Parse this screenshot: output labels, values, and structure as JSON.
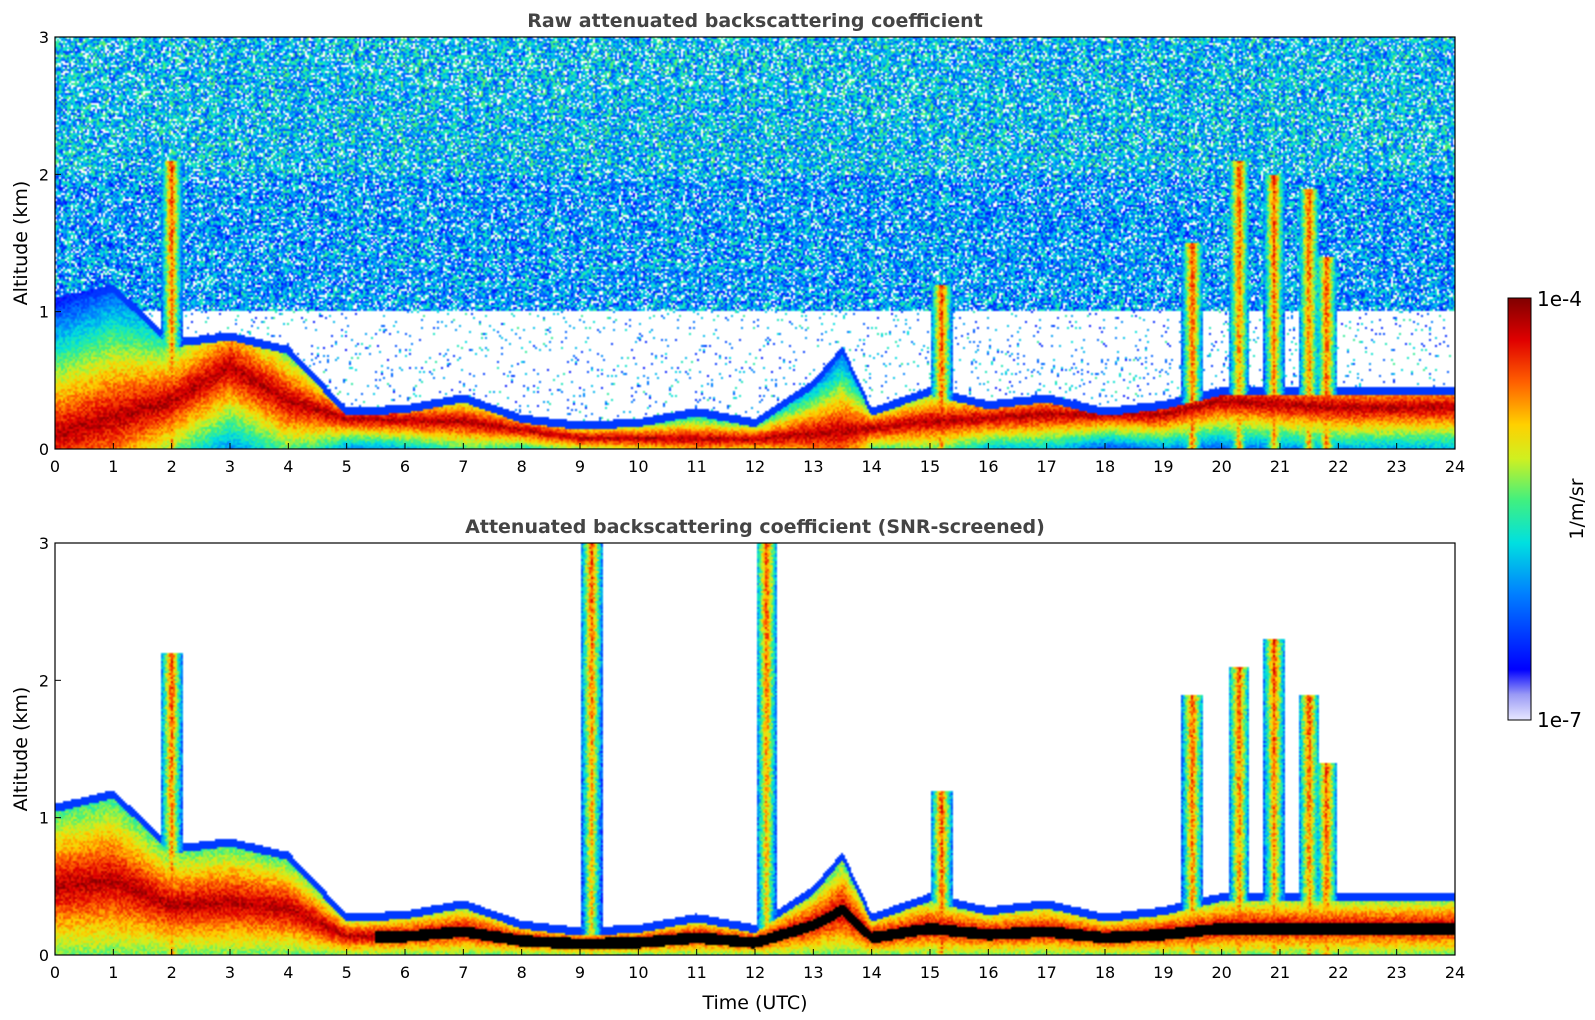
{
  "chart_data": [
    {
      "type": "heatmap",
      "id": "raw",
      "title": "Raw attenuated backscattering coefficient",
      "xlabel": "",
      "ylabel": "Altitude (km)",
      "xlim": [
        0,
        24
      ],
      "ylim": [
        0,
        3
      ],
      "xticks": [
        "0",
        "1",
        "2",
        "3",
        "4",
        "5",
        "6",
        "7",
        "8",
        "9",
        "10",
        "11",
        "12",
        "13",
        "14",
        "15",
        "16",
        "17",
        "18",
        "19",
        "20",
        "21",
        "22",
        "23",
        "24"
      ],
      "yticks": [
        "0",
        "1",
        "2",
        "3"
      ],
      "features": {
        "aerosol_layer_top_km": [
          [
            0,
            1.1
          ],
          [
            1,
            1.2
          ],
          [
            2,
            0.8
          ],
          [
            3,
            0.85
          ],
          [
            4,
            0.75
          ],
          [
            5,
            0.3
          ],
          [
            6,
            0.32
          ],
          [
            7,
            0.4
          ],
          [
            8,
            0.25
          ],
          [
            9,
            0.2
          ],
          [
            10,
            0.22
          ],
          [
            11,
            0.3
          ],
          [
            12,
            0.22
          ],
          [
            13,
            0.5
          ],
          [
            13.5,
            0.75
          ],
          [
            14,
            0.3
          ],
          [
            15,
            0.45
          ],
          [
            16,
            0.35
          ],
          [
            17,
            0.4
          ],
          [
            18,
            0.3
          ],
          [
            19,
            0.35
          ],
          [
            20,
            0.45
          ],
          [
            21,
            0.45
          ],
          [
            22,
            0.45
          ],
          [
            23,
            0.45
          ],
          [
            24,
            0.45
          ]
        ],
        "peak_layer_km": [
          [
            0,
            0.1
          ],
          [
            2,
            0.35
          ],
          [
            3,
            0.6
          ],
          [
            4,
            0.35
          ],
          [
            5,
            0.22
          ],
          [
            7,
            0.2
          ],
          [
            9,
            0.08
          ],
          [
            12,
            0.07
          ],
          [
            14,
            0.15
          ],
          [
            15,
            0.2
          ],
          [
            17,
            0.25
          ],
          [
            19,
            0.25
          ],
          [
            20,
            0.35
          ],
          [
            22,
            0.3
          ],
          [
            24,
            0.3
          ]
        ],
        "clouds": [
          {
            "t": 2.0,
            "top_km": 2.1
          },
          {
            "t": 15.2,
            "top_km": 1.2
          },
          {
            "t": 19.5,
            "top_km": 1.5
          },
          {
            "t": 20.3,
            "top_km": 2.1
          },
          {
            "t": 20.9,
            "top_km": 2.0
          },
          {
            "t": 21.5,
            "top_km": 1.9
          },
          {
            "t": 21.8,
            "top_km": 1.4
          }
        ],
        "noise_floor": "high"
      }
    },
    {
      "type": "heatmap",
      "id": "screened",
      "title": "Attenuated backscattering coefficient (SNR-screened)",
      "xlabel": "Time (UTC)",
      "ylabel": "Altitude (km)",
      "xlim": [
        0,
        24
      ],
      "ylim": [
        0,
        3
      ],
      "xticks": [
        "0",
        "1",
        "2",
        "3",
        "4",
        "5",
        "6",
        "7",
        "8",
        "9",
        "10",
        "11",
        "12",
        "13",
        "14",
        "15",
        "16",
        "17",
        "18",
        "19",
        "20",
        "21",
        "22",
        "23",
        "24"
      ],
      "yticks": [
        "0",
        "1",
        "2",
        "3"
      ],
      "features": {
        "aerosol_layer_top_km": [
          [
            0,
            1.1
          ],
          [
            1,
            1.2
          ],
          [
            2,
            0.8
          ],
          [
            3,
            0.85
          ],
          [
            4,
            0.75
          ],
          [
            5,
            0.3
          ],
          [
            6,
            0.32
          ],
          [
            7,
            0.4
          ],
          [
            8,
            0.25
          ],
          [
            9,
            0.2
          ],
          [
            10,
            0.22
          ],
          [
            11,
            0.3
          ],
          [
            12,
            0.22
          ],
          [
            13,
            0.5
          ],
          [
            13.5,
            0.75
          ],
          [
            14,
            0.3
          ],
          [
            15,
            0.45
          ],
          [
            16,
            0.35
          ],
          [
            17,
            0.4
          ],
          [
            18,
            0.3
          ],
          [
            19,
            0.35
          ],
          [
            20,
            0.45
          ],
          [
            21,
            0.45
          ],
          [
            22,
            0.45
          ],
          [
            23,
            0.45
          ],
          [
            24,
            0.45
          ]
        ],
        "clouds": [
          {
            "t": 2.0,
            "top_km": 2.2
          },
          {
            "t": 9.2,
            "top_km": 3.0
          },
          {
            "t": 12.2,
            "top_km": 3.0
          },
          {
            "t": 15.2,
            "top_km": 1.2
          },
          {
            "t": 19.5,
            "top_km": 1.9
          },
          {
            "t": 20.3,
            "top_km": 2.1
          },
          {
            "t": 20.9,
            "top_km": 2.3
          },
          {
            "t": 21.5,
            "top_km": 1.9
          },
          {
            "t": 21.8,
            "top_km": 1.4
          }
        ],
        "noise_floor": "screened"
      }
    }
  ],
  "colorbar": {
    "label": "1/m/sr",
    "max_label": "1e-4",
    "min_label": "1e-7",
    "colormap": "jet"
  }
}
